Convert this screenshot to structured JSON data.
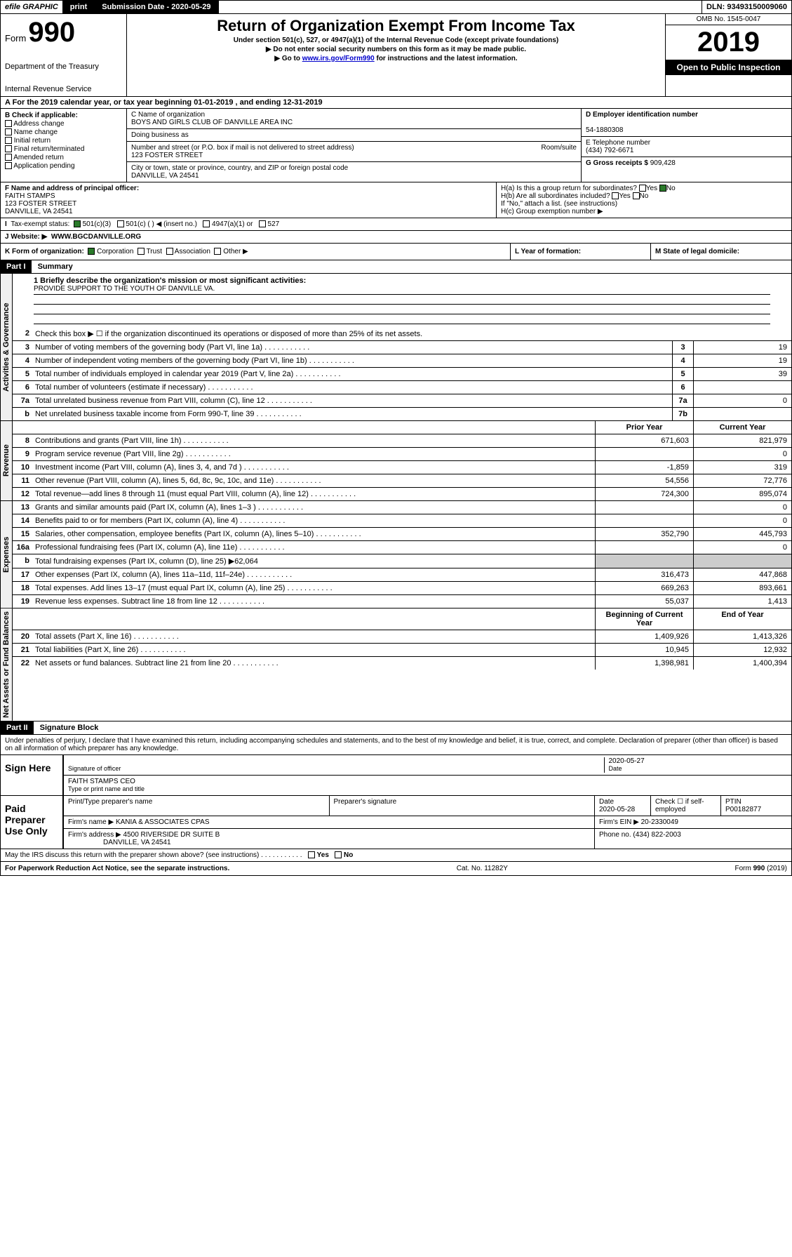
{
  "topbar": {
    "efile": "efile GRAPHIC",
    "print": "print",
    "subdate_label": "Submission Date - 2020-05-29",
    "dln": "DLN: 93493150009060"
  },
  "header": {
    "form_label": "Form",
    "form_num": "990",
    "dept1": "Department of the Treasury",
    "dept2": "Internal Revenue Service",
    "title": "Return of Organization Exempt From Income Tax",
    "sub1": "Under section 501(c), 527, or 4947(a)(1) of the Internal Revenue Code (except private foundations)",
    "sub2": "▶ Do not enter social security numbers on this form as it may be made public.",
    "sub3_pre": "▶ Go to ",
    "sub3_link": "www.irs.gov/Form990",
    "sub3_post": " for instructions and the latest information.",
    "omb": "OMB No. 1545-0047",
    "year": "2019",
    "open": "Open to Public Inspection"
  },
  "secA": "A For the 2019 calendar year, or tax year beginning 01-01-2019    , and ending 12-31-2019",
  "B": {
    "label": "B Check if applicable:",
    "opts": [
      "Address change",
      "Name change",
      "Initial return",
      "Final return/terminated",
      "Amended return",
      "Application pending"
    ]
  },
  "C": {
    "name_label": "C Name of organization",
    "name": "BOYS AND GIRLS CLUB OF DANVILLE AREA INC",
    "dba_label": "Doing business as",
    "addr_label": "Number and street (or P.O. box if mail is not delivered to street address)",
    "room_label": "Room/suite",
    "addr": "123 FOSTER STREET",
    "city_label": "City or town, state or province, country, and ZIP or foreign postal code",
    "city": "DANVILLE, VA  24541"
  },
  "D": {
    "ein_label": "D Employer identification number",
    "ein": "54-1880308",
    "tel_label": "E Telephone number",
    "tel": "(434) 792-6671",
    "gross_label": "G Gross receipts $",
    "gross": "909,428"
  },
  "F": {
    "label": "F  Name and address of principal officer:",
    "name": "FAITH STAMPS",
    "addr": "123 FOSTER STREET",
    "city": "DANVILLE, VA  24541"
  },
  "H": {
    "a": "H(a)  Is this a group return for subordinates?",
    "b": "H(b)  Are all subordinates included?",
    "b_note": "If \"No,\" attach a list. (see instructions)",
    "c": "H(c)  Group exemption number ▶",
    "yes": "Yes",
    "no": "No"
  },
  "I": {
    "label": "Tax-exempt status:",
    "opts": [
      "501(c)(3)",
      "501(c) (   ) ◀ (insert no.)",
      "4947(a)(1) or",
      "527"
    ]
  },
  "J": {
    "label": "J Website: ▶",
    "val": "WWW.BGCDANVILLE.ORG"
  },
  "K": {
    "label": "K Form of organization:",
    "opts": [
      "Corporation",
      "Trust",
      "Association",
      "Other ▶"
    ]
  },
  "L": "L Year of formation:",
  "M": "M State of legal domicile:",
  "partI": {
    "hdr": "Part I",
    "title": "Summary",
    "mission_label": "1  Briefly describe the organization's mission or most significant activities:",
    "mission": "PROVIDE SUPPORT TO THE YOUTH OF DANVILLE VA.",
    "line2": "Check this box ▶ ☐  if the organization discontinued its operations or disposed of more than 25% of its net assets.",
    "vlabels": {
      "ag": "Activities & Governance",
      "rev": "Revenue",
      "exp": "Expenses",
      "net": "Net Assets or Fund Balances"
    },
    "lines_ag": [
      {
        "n": "3",
        "t": "Number of voting members of the governing body (Part VI, line 1a)",
        "box": "3",
        "v": "19"
      },
      {
        "n": "4",
        "t": "Number of independent voting members of the governing body (Part VI, line 1b)",
        "box": "4",
        "v": "19"
      },
      {
        "n": "5",
        "t": "Total number of individuals employed in calendar year 2019 (Part V, line 2a)",
        "box": "5",
        "v": "39"
      },
      {
        "n": "6",
        "t": "Total number of volunteers (estimate if necessary)",
        "box": "6",
        "v": ""
      },
      {
        "n": "7a",
        "t": "Total unrelated business revenue from Part VIII, column (C), line 12",
        "box": "7a",
        "v": "0"
      },
      {
        "n": "b",
        "t": "Net unrelated business taxable income from Form 990-T, line 39",
        "box": "7b",
        "v": ""
      }
    ],
    "col_hdr": {
      "prior": "Prior Year",
      "curr": "Current Year"
    },
    "lines_rev": [
      {
        "n": "8",
        "t": "Contributions and grants (Part VIII, line 1h)",
        "p": "671,603",
        "c": "821,979"
      },
      {
        "n": "9",
        "t": "Program service revenue (Part VIII, line 2g)",
        "p": "",
        "c": "0"
      },
      {
        "n": "10",
        "t": "Investment income (Part VIII, column (A), lines 3, 4, and 7d )",
        "p": "-1,859",
        "c": "319"
      },
      {
        "n": "11",
        "t": "Other revenue (Part VIII, column (A), lines 5, 6d, 8c, 9c, 10c, and 11e)",
        "p": "54,556",
        "c": "72,776"
      },
      {
        "n": "12",
        "t": "Total revenue—add lines 8 through 11 (must equal Part VIII, column (A), line 12)",
        "p": "724,300",
        "c": "895,074"
      }
    ],
    "lines_exp": [
      {
        "n": "13",
        "t": "Grants and similar amounts paid (Part IX, column (A), lines 1–3 )",
        "p": "",
        "c": "0"
      },
      {
        "n": "14",
        "t": "Benefits paid to or for members (Part IX, column (A), line 4)",
        "p": "",
        "c": "0"
      },
      {
        "n": "15",
        "t": "Salaries, other compensation, employee benefits (Part IX, column (A), lines 5–10)",
        "p": "352,790",
        "c": "445,793"
      },
      {
        "n": "16a",
        "t": "Professional fundraising fees (Part IX, column (A), line 11e)",
        "p": "",
        "c": "0"
      },
      {
        "n": "b",
        "t": "Total fundraising expenses (Part IX, column (D), line 25) ▶62,064",
        "p": "—",
        "c": "—"
      },
      {
        "n": "17",
        "t": "Other expenses (Part IX, column (A), lines 11a–11d, 11f–24e)",
        "p": "316,473",
        "c": "447,868"
      },
      {
        "n": "18",
        "t": "Total expenses. Add lines 13–17 (must equal Part IX, column (A), line 25)",
        "p": "669,263",
        "c": "893,661"
      },
      {
        "n": "19",
        "t": "Revenue less expenses. Subtract line 18 from line 12",
        "p": "55,037",
        "c": "1,413"
      }
    ],
    "col_hdr2": {
      "prior": "Beginning of Current Year",
      "curr": "End of Year"
    },
    "lines_net": [
      {
        "n": "20",
        "t": "Total assets (Part X, line 16)",
        "p": "1,409,926",
        "c": "1,413,326"
      },
      {
        "n": "21",
        "t": "Total liabilities (Part X, line 26)",
        "p": "10,945",
        "c": "12,932"
      },
      {
        "n": "22",
        "t": "Net assets or fund balances. Subtract line 21 from line 20",
        "p": "1,398,981",
        "c": "1,400,394"
      }
    ]
  },
  "partII": {
    "hdr": "Part II",
    "title": "Signature Block",
    "perjury": "Under penalties of perjury, I declare that I have examined this return, including accompanying schedules and statements, and to the best of my knowledge and belief, it is true, correct, and complete. Declaration of preparer (other than officer) is based on all information of which preparer has any knowledge.",
    "sign_here": "Sign Here",
    "sig_officer": "Signature of officer",
    "sig_date": "2020-05-27",
    "date_label": "Date",
    "sig_name": "FAITH STAMPS  CEO",
    "type_label": "Type or print name and title",
    "paid": "Paid Preparer Use Only",
    "prep_name_label": "Print/Type preparer's name",
    "prep_sig_label": "Preparer's signature",
    "prep_date_label": "Date",
    "prep_date": "2020-05-28",
    "check_label": "Check ☐ if self-employed",
    "ptin_label": "PTIN",
    "ptin": "P00182877",
    "firm_name_label": "Firm's name    ▶",
    "firm_name": "KANIA & ASSOCIATES CPAS",
    "firm_ein_label": "Firm's EIN ▶",
    "firm_ein": "20-2330049",
    "firm_addr_label": "Firm's address ▶",
    "firm_addr": "4500 RIVERSIDE DR SUITE B",
    "firm_city": "DANVILLE, VA  24541",
    "phone_label": "Phone no.",
    "phone": "(434) 822-2003",
    "discuss": "May the IRS discuss this return with the preparer shown above? (see instructions)",
    "yes": "Yes",
    "no": "No"
  },
  "footer": {
    "left": "For Paperwork Reduction Act Notice, see the separate instructions.",
    "mid": "Cat. No. 11282Y",
    "right": "Form 990 (2019)"
  }
}
